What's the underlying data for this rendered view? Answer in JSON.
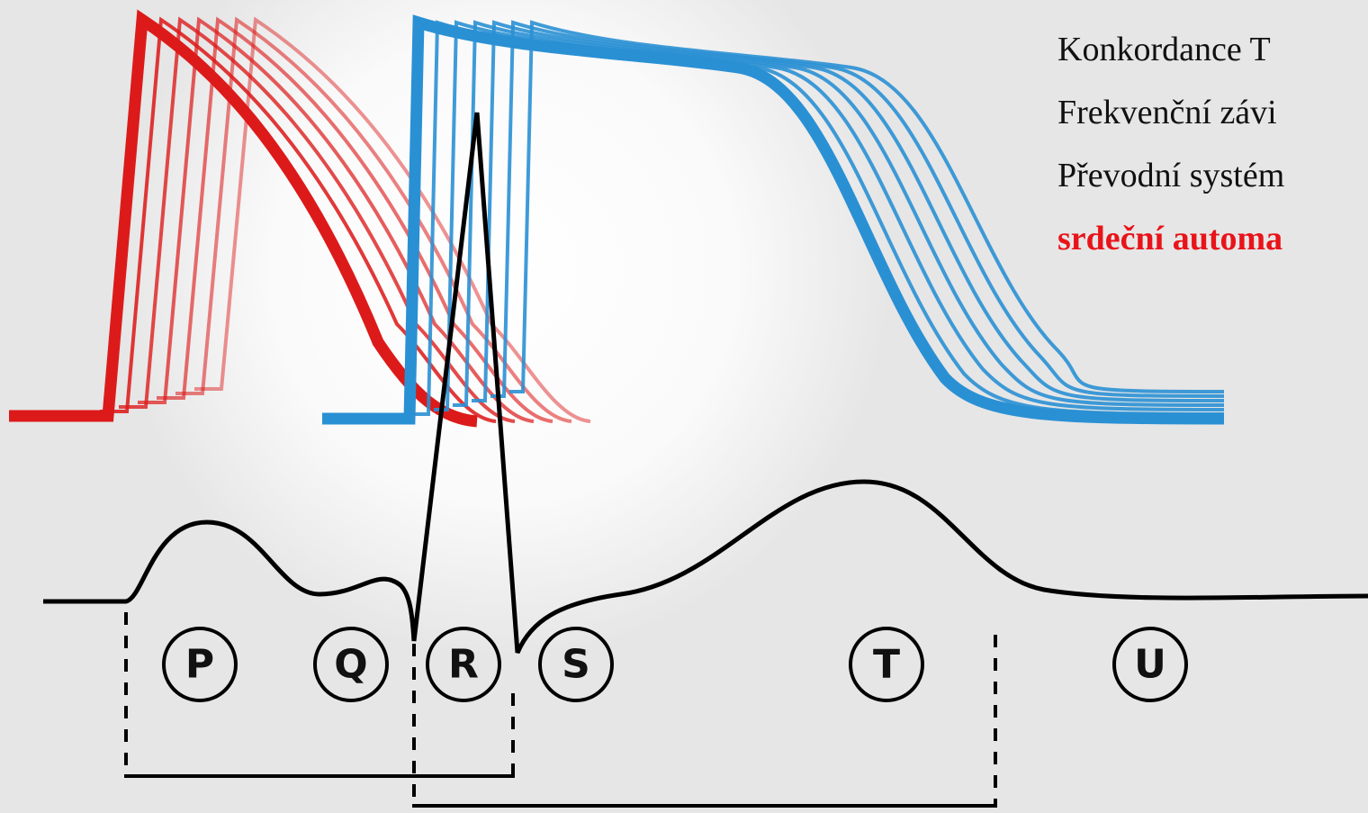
{
  "text_lines": [
    "Konkordance T",
    "Frekvenční závi",
    "Převodní systém",
    "srdeční automa"
  ],
  "wave_labels": [
    "P",
    "Q",
    "R",
    "S",
    "T",
    "U"
  ]
}
